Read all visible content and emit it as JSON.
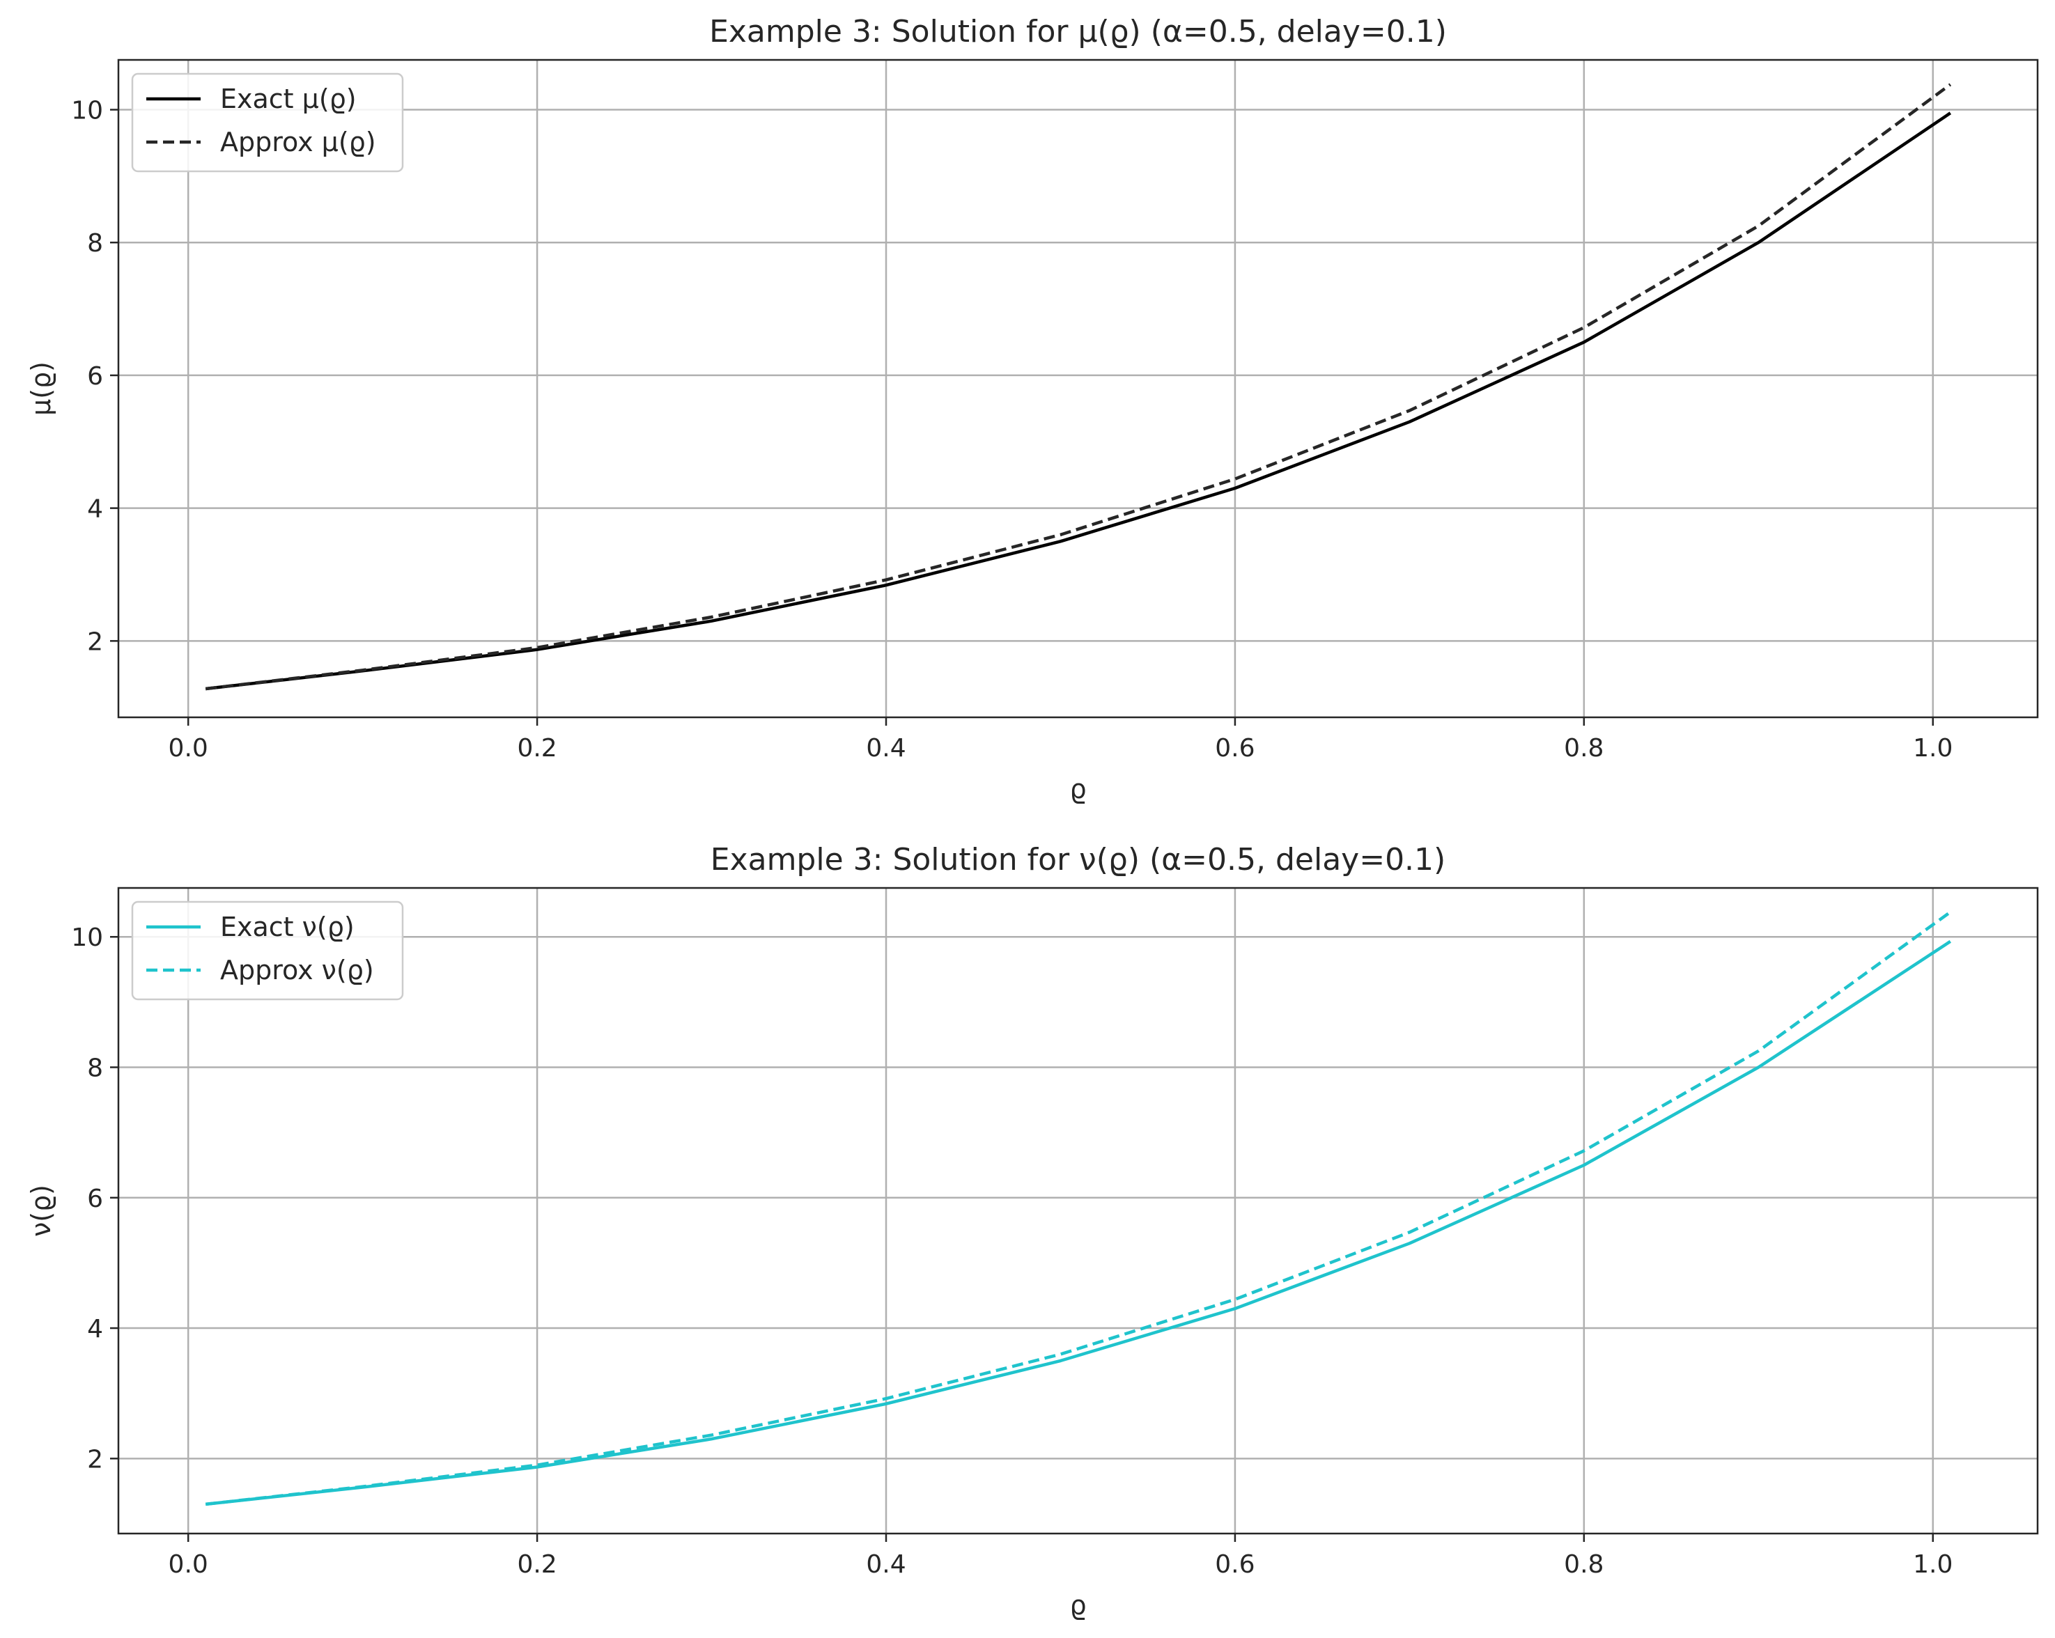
{
  "chart_data": [
    {
      "type": "line",
      "title": "Example 3: Solution for μ(ϱ) (α=0.5, delay=0.1)",
      "xlabel": "ϱ",
      "ylabel": "μ(ϱ)",
      "xlim": [
        -0.04,
        1.06
      ],
      "ylim": [
        0.85,
        10.75
      ],
      "xticks": [
        0.0,
        0.2,
        0.4,
        0.6,
        0.8,
        1.0
      ],
      "xtick_labels": [
        "0.0",
        "0.2",
        "0.4",
        "0.6",
        "0.8",
        "1.0"
      ],
      "yticks": [
        2,
        4,
        6,
        8,
        10
      ],
      "ytick_labels": [
        "2",
        "4",
        "6",
        "8",
        "10"
      ],
      "grid": true,
      "legend_position": "top-left",
      "series": [
        {
          "name": "Exact μ(ϱ)",
          "color": "#000000",
          "style": "solid",
          "x": [
            0.01,
            0.1,
            0.2,
            0.3,
            0.4,
            0.5,
            0.6,
            0.7,
            0.8,
            0.9,
            1.01
          ],
          "y": [
            1.28,
            1.55,
            1.87,
            2.3,
            2.84,
            3.5,
            4.3,
            5.3,
            6.5,
            8.0,
            9.95
          ]
        },
        {
          "name": "Approx μ(ϱ)",
          "color": "#262626",
          "style": "dashed",
          "x": [
            0.01,
            0.1,
            0.2,
            0.3,
            0.4,
            0.5,
            0.6,
            0.7,
            0.8,
            0.9,
            1.01
          ],
          "y": [
            1.28,
            1.56,
            1.9,
            2.36,
            2.92,
            3.6,
            4.44,
            5.47,
            6.72,
            8.25,
            10.38
          ]
        }
      ]
    },
    {
      "type": "line",
      "title": "Example 3: Solution for ν(ϱ) (α=0.5, delay=0.1)",
      "xlabel": "ϱ",
      "ylabel": "ν(ϱ)",
      "xlim": [
        -0.04,
        1.06
      ],
      "ylim": [
        0.85,
        10.75
      ],
      "xticks": [
        0.0,
        0.2,
        0.4,
        0.6,
        0.8,
        1.0
      ],
      "xtick_labels": [
        "0.0",
        "0.2",
        "0.4",
        "0.6",
        "0.8",
        "1.0"
      ],
      "yticks": [
        2,
        4,
        6,
        8,
        10
      ],
      "ytick_labels": [
        "2",
        "4",
        "6",
        "8",
        "10"
      ],
      "grid": true,
      "legend_position": "top-left",
      "series": [
        {
          "name": "Exact ν(ϱ)",
          "color": "#1fc3cc",
          "style": "solid",
          "x": [
            0.01,
            0.1,
            0.2,
            0.3,
            0.4,
            0.5,
            0.6,
            0.7,
            0.8,
            0.9,
            1.01
          ],
          "y": [
            1.3,
            1.56,
            1.87,
            2.3,
            2.84,
            3.5,
            4.3,
            5.3,
            6.5,
            8.0,
            9.93
          ]
        },
        {
          "name": "Approx ν(ϱ)",
          "color": "#1fc3cc",
          "style": "dashed",
          "x": [
            0.01,
            0.1,
            0.2,
            0.3,
            0.4,
            0.5,
            0.6,
            0.7,
            0.8,
            0.9,
            1.01
          ],
          "y": [
            1.3,
            1.57,
            1.9,
            2.36,
            2.92,
            3.6,
            4.44,
            5.47,
            6.72,
            8.25,
            10.38
          ]
        }
      ]
    }
  ]
}
